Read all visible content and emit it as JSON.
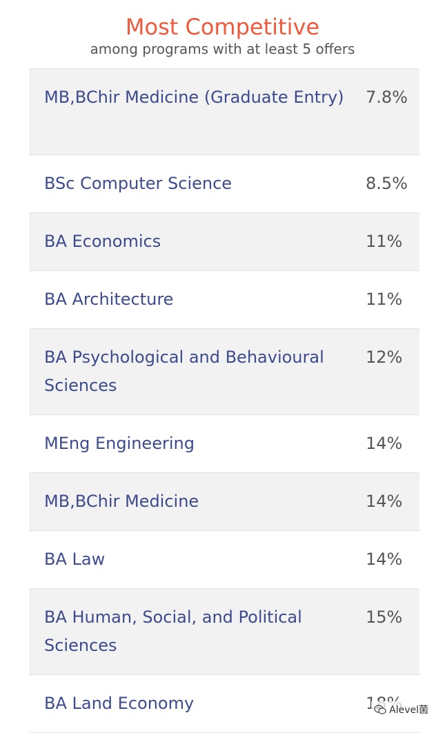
{
  "header": {
    "title": "Most Competitive",
    "subtitle": "among programs with at least 5 offers"
  },
  "rows": [
    {
      "program": "MB,BChir Medicine (Graduate Entry)",
      "rate": "7.8%"
    },
    {
      "program": "BSc Computer Science",
      "rate": "8.5%"
    },
    {
      "program": "BA Economics",
      "rate": "11%"
    },
    {
      "program": "BA Architecture",
      "rate": "11%"
    },
    {
      "program": "BA Psychological and Behavioural Sciences",
      "rate": "12%"
    },
    {
      "program": "MEng Engineering",
      "rate": "14%"
    },
    {
      "program": "MB,BChir Medicine",
      "rate": "14%"
    },
    {
      "program": "BA Law",
      "rate": "14%"
    },
    {
      "program": "BA Human, Social, and Political Sciences",
      "rate": "15%"
    },
    {
      "program": "BA Land Economy",
      "rate": "18%"
    }
  ],
  "watermark": {
    "text": "Alevel菌",
    "icon": "wechat-icon"
  }
}
